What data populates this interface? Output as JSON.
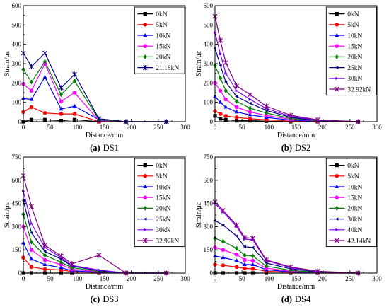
{
  "chart_data": [
    {
      "type": "line",
      "caption": {
        "label": "(a)",
        "text": "DS1"
      },
      "xlabel": "Distance/mm",
      "ylabel": "Strain/με",
      "xlim": [
        0,
        300
      ],
      "ylim": [
        0,
        600
      ],
      "xticks": [
        0,
        50,
        100,
        150,
        200,
        250,
        300
      ],
      "yticks": [
        0,
        100,
        200,
        300,
        400,
        500,
        600
      ],
      "grid": false,
      "legend_position": "top-right",
      "x": [
        0,
        15,
        40,
        70,
        95,
        140,
        190,
        265
      ],
      "series": [
        {
          "name": "0kN",
          "color": "#000000",
          "marker": "square",
          "y": [
            0,
            10,
            10,
            5,
            10,
            0,
            0,
            0
          ]
        },
        {
          "name": "5kN",
          "color": "#ff0000",
          "marker": "circle",
          "y": [
            50,
            75,
            45,
            40,
            40,
            0,
            0,
            0
          ]
        },
        {
          "name": "10kN",
          "color": "#0000ff",
          "marker": "triangle",
          "y": [
            120,
            115,
            230,
            65,
            80,
            10,
            0,
            0
          ]
        },
        {
          "name": "15kN",
          "color": "#ff00ff",
          "marker": "circle",
          "y": [
            195,
            160,
            300,
            105,
            150,
            5,
            0,
            0
          ]
        },
        {
          "name": "20kN",
          "color": "#008000",
          "marker": "diamond",
          "y": [
            270,
            205,
            310,
            140,
            210,
            10,
            0,
            0
          ]
        },
        {
          "name": "21.18kN",
          "color": "#000080",
          "marker": "star",
          "y": [
            355,
            285,
            355,
            175,
            245,
            15,
            0,
            0
          ]
        }
      ]
    },
    {
      "type": "line",
      "caption": {
        "label": "(b)",
        "text": "DS2"
      },
      "xlabel": "Distance/mm",
      "ylabel": "Strain/με",
      "xlim": [
        0,
        300
      ],
      "ylim": [
        0,
        600
      ],
      "xticks": [
        0,
        50,
        100,
        150,
        200,
        250,
        300
      ],
      "yticks": [
        0,
        100,
        200,
        300,
        400,
        500,
        600
      ],
      "grid": false,
      "legend_position": "top-right",
      "x": [
        0,
        10,
        20,
        40,
        65,
        95,
        140,
        190,
        265
      ],
      "series": [
        {
          "name": "0kN",
          "color": "#000000",
          "marker": "square",
          "y": [
            30,
            15,
            10,
            5,
            5,
            3,
            0,
            0,
            0
          ]
        },
        {
          "name": "5kN",
          "color": "#ff0000",
          "marker": "circle",
          "y": [
            55,
            40,
            30,
            22,
            15,
            10,
            3,
            0,
            0
          ]
        },
        {
          "name": "10kN",
          "color": "#0000ff",
          "marker": "triangle",
          "y": [
            130,
            100,
            75,
            50,
            35,
            22,
            8,
            2,
            0
          ]
        },
        {
          "name": "15kN",
          "color": "#ff00ff",
          "marker": "circle",
          "y": [
            200,
            160,
            115,
            75,
            50,
            32,
            12,
            3,
            0
          ]
        },
        {
          "name": "20kN",
          "color": "#008000",
          "marker": "diamond",
          "y": [
            290,
            225,
            160,
            105,
            70,
            45,
            16,
            5,
            0
          ]
        },
        {
          "name": "25kN",
          "color": "#000080",
          "marker": "triangle-left",
          "y": [
            380,
            290,
            205,
            130,
            95,
            58,
            22,
            6,
            0
          ]
        },
        {
          "name": "30kN",
          "color": "#8000ff",
          "marker": "triangle-right",
          "y": [
            460,
            350,
            250,
            160,
            115,
            68,
            27,
            8,
            0
          ]
        },
        {
          "name": "32.92kN",
          "color": "#800080",
          "marker": "star",
          "y": [
            545,
            420,
            305,
            185,
            140,
            80,
            33,
            10,
            0
          ]
        }
      ]
    },
    {
      "type": "line",
      "caption": {
        "label": "(c)",
        "text": "DS3"
      },
      "xlabel": "Distance/mm",
      "ylabel": "Strain/με",
      "xlim": [
        0,
        300
      ],
      "ylim": [
        0,
        750
      ],
      "xticks": [
        0,
        50,
        100,
        150,
        200,
        250,
        300
      ],
      "yticks": [
        0,
        150,
        300,
        450,
        600,
        750
      ],
      "grid": false,
      "legend_position": "top-right",
      "x": [
        0,
        15,
        40,
        70,
        90,
        140,
        190,
        265
      ],
      "series": [
        {
          "name": "0kN",
          "color": "#000000",
          "marker": "square",
          "y": [
            0,
            0,
            0,
            0,
            0,
            0,
            0,
            0
          ]
        },
        {
          "name": "5kN",
          "color": "#ff0000",
          "marker": "circle",
          "y": [
            100,
            40,
            25,
            20,
            10,
            3,
            0,
            0
          ]
        },
        {
          "name": "10kN",
          "color": "#0000ff",
          "marker": "triangle",
          "y": [
            195,
            90,
            55,
            35,
            15,
            5,
            0,
            0
          ]
        },
        {
          "name": "15kN",
          "color": "#ff00ff",
          "marker": "circle",
          "y": [
            300,
            150,
            85,
            55,
            25,
            8,
            0,
            0
          ]
        },
        {
          "name": "20kN",
          "color": "#008000",
          "marker": "diamond",
          "y": [
            380,
            200,
            115,
            70,
            35,
            10,
            0,
            0
          ]
        },
        {
          "name": "25kN",
          "color": "#000080",
          "marker": "triangle-left",
          "y": [
            470,
            260,
            140,
            90,
            45,
            15,
            0,
            0
          ]
        },
        {
          "name": "30kN",
          "color": "#8000ff",
          "marker": "triangle-right",
          "y": [
            530,
            320,
            165,
            100,
            50,
            20,
            0,
            0
          ]
        },
        {
          "name": "32.92kN",
          "color": "#800080",
          "marker": "star",
          "y": [
            630,
            430,
            180,
            110,
            60,
            115,
            0,
            0
          ]
        }
      ]
    },
    {
      "type": "line",
      "caption": {
        "label": "(d)",
        "text": "DS4"
      },
      "xlabel": "Distance/mm",
      "ylabel": "Strain/με",
      "xlim": [
        0,
        300
      ],
      "ylim": [
        0,
        750
      ],
      "xticks": [
        0,
        50,
        100,
        150,
        200,
        250,
        300
      ],
      "yticks": [
        0,
        150,
        300,
        450,
        600,
        750
      ],
      "grid": false,
      "legend_position": "top-right",
      "x": [
        0,
        15,
        40,
        55,
        70,
        95,
        140,
        190,
        265
      ],
      "series": [
        {
          "name": "0kN",
          "color": "#000000",
          "marker": "square",
          "y": [
            0,
            0,
            0,
            0,
            0,
            0,
            0,
            0,
            0
          ]
        },
        {
          "name": "5kN",
          "color": "#ff0000",
          "marker": "circle",
          "y": [
            55,
            50,
            40,
            30,
            28,
            12,
            5,
            0,
            0
          ]
        },
        {
          "name": "10kN",
          "color": "#0000ff",
          "marker": "triangle",
          "y": [
            110,
            100,
            80,
            55,
            55,
            22,
            8,
            2,
            0
          ]
        },
        {
          "name": "15kN",
          "color": "#ff00ff",
          "marker": "circle",
          "y": [
            165,
            150,
            120,
            85,
            80,
            32,
            12,
            4,
            0
          ]
        },
        {
          "name": "20kN",
          "color": "#008000",
          "marker": "diamond",
          "y": [
            225,
            205,
            160,
            115,
            110,
            45,
            18,
            5,
            0
          ]
        },
        {
          "name": "30kN",
          "color": "#000080",
          "marker": "triangle-left",
          "y": [
            340,
            310,
            240,
            170,
            165,
            65,
            28,
            8,
            0
          ]
        },
        {
          "name": "40kN",
          "color": "#8000ff",
          "marker": "triangle-right",
          "y": [
            450,
            395,
            300,
            220,
            215,
            80,
            35,
            10,
            0
          ]
        },
        {
          "name": "42.14kN",
          "color": "#800080",
          "marker": "star",
          "y": [
            460,
            405,
            310,
            230,
            225,
            85,
            40,
            12,
            0
          ]
        }
      ]
    }
  ]
}
